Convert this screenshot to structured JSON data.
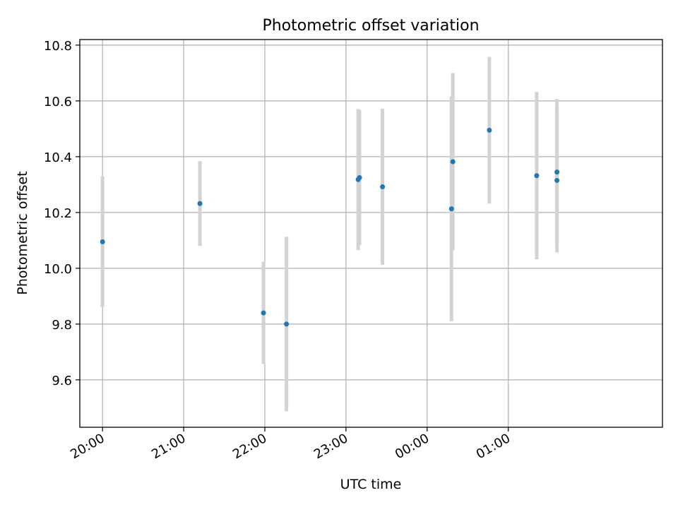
{
  "chart_data": {
    "type": "scatter",
    "title": "Photometric offset variation",
    "xlabel": "UTC time",
    "ylabel": "Photometric offset",
    "x_ticks": [
      "20:00",
      "21:00",
      "22:00",
      "23:00",
      "00:00",
      "01:00"
    ],
    "x_tick_values_hours": [
      20,
      21,
      22,
      23,
      24,
      25
    ],
    "xlim_hours": [
      19.72,
      26.9
    ],
    "ylim": [
      9.43,
      10.82
    ],
    "y_ticks": [
      9.6,
      9.8,
      10.0,
      10.2,
      10.4,
      10.6,
      10.8
    ],
    "y_tick_labels": [
      "9.6",
      "9.8",
      "10.0",
      "10.2",
      "10.4",
      "10.6",
      "10.8"
    ],
    "grid": true,
    "point_color": "#1f77b4",
    "errorbar_color": "#d3d3d3",
    "points": [
      {
        "t": "20:00",
        "y": 10.095,
        "err": 0.235
      },
      {
        "t": "21:12",
        "y": 10.232,
        "err": 0.152
      },
      {
        "t": "21:59",
        "y": 9.84,
        "err": 0.183
      },
      {
        "t": "22:16",
        "y": 9.8,
        "err": 0.313
      },
      {
        "t": "23:09",
        "y": 10.318,
        "err": 0.253
      },
      {
        "t": "23:10",
        "y": 10.325,
        "err": 0.242
      },
      {
        "t": "23:27",
        "y": 10.292,
        "err": 0.28
      },
      {
        "t": "00:18",
        "y": 10.213,
        "err": 0.403
      },
      {
        "t": "00:19",
        "y": 10.382,
        "err": 0.318
      },
      {
        "t": "00:46",
        "y": 10.495,
        "err": 0.263
      },
      {
        "t": "01:21",
        "y": 10.332,
        "err": 0.3
      },
      {
        "t": "01:36",
        "y": 10.345,
        "err": 0.262
      },
      {
        "t": "01:36",
        "y": 10.315,
        "err": 0.258
      }
    ]
  }
}
